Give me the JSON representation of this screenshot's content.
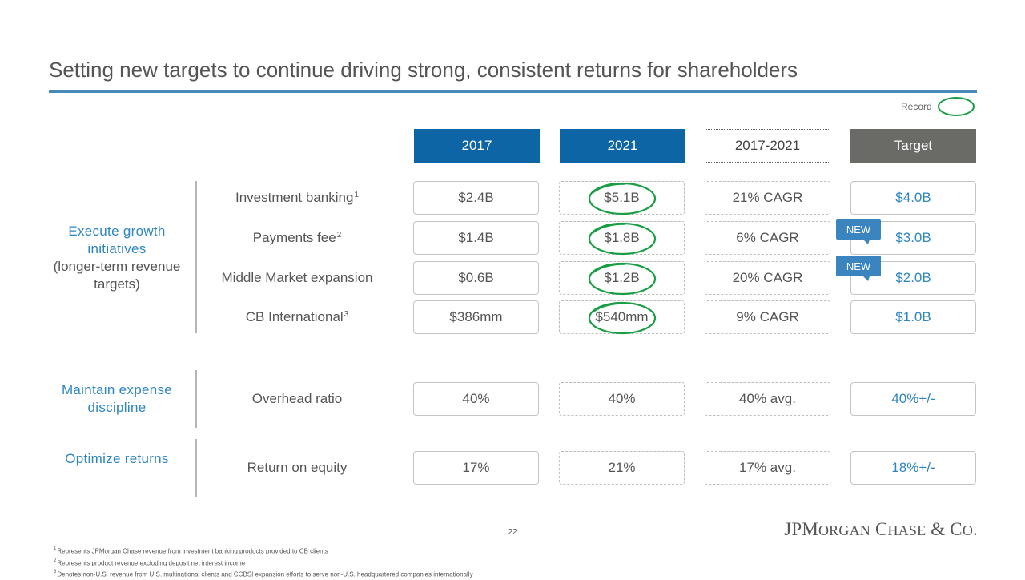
{
  "title": "Setting new targets to continue driving strong, consistent returns for shareholders",
  "legend": {
    "label": "Record",
    "marker_color": "#1a9e44"
  },
  "columns": [
    "2017",
    "2021",
    "2017-2021",
    "Target"
  ],
  "groups": [
    {
      "accent": "Execute growth initiatives",
      "sub": "(longer-term revenue targets)"
    },
    {
      "accent": "Maintain expense discipline",
      "sub": ""
    },
    {
      "accent": "Optimize returns",
      "sub": ""
    }
  ],
  "rows": [
    {
      "label": "Investment banking",
      "sup": "1",
      "v2017": "$2.4B",
      "v2021": "$5.1B",
      "change": "21% CAGR",
      "target": "$4.0B",
      "record": true,
      "new": false
    },
    {
      "label": "Payments fee",
      "sup": "2",
      "v2017": "$1.4B",
      "v2021": "$1.8B",
      "change": "6% CAGR",
      "target": "$3.0B",
      "record": true,
      "new": true
    },
    {
      "label": "Middle Market expansion",
      "sup": "",
      "v2017": "$0.6B",
      "v2021": "$1.2B",
      "change": "20% CAGR",
      "target": "$2.0B",
      "record": true,
      "new": true
    },
    {
      "label": "CB International",
      "sup": "3",
      "v2017": "$386mm",
      "v2021": "$540mm",
      "change": "9% CAGR",
      "target": "$1.0B",
      "record": true,
      "new": false
    },
    {
      "label": "Overhead ratio",
      "sup": "",
      "v2017": "40%",
      "v2021": "40%",
      "change": "40% avg.",
      "target": "40%+/-",
      "record": false,
      "new": false
    },
    {
      "label": "Return on equity",
      "sup": "",
      "v2017": "17%",
      "v2021": "21%",
      "change": "17% avg.",
      "target": "18%+/-",
      "record": false,
      "new": false
    }
  ],
  "badge_label": "NEW",
  "page_number": "22",
  "logo": {
    "a": "JPM",
    "b": "ORGAN",
    "c": " C",
    "d": "HASE",
    "e": " & C",
    "f": "O",
    "g": "."
  },
  "footnotes": [
    {
      "num": "1",
      "text": "Represents JPMorgan Chase revenue from investment banking products provided to CB clients"
    },
    {
      "num": "2",
      "text": "Represents product revenue excluding deposit net interest income"
    },
    {
      "num": "3",
      "text": "Denotes non-U.S. revenue from U.S. multinational clients and CCBSI expansion efforts to serve non-U.S. headquartered companies internationally"
    }
  ],
  "colors": {
    "accent_blue": "#2e86c1",
    "header_blue": "#0e65a6",
    "header_gray": "#6a6a67",
    "rule_blue": "#4a8ab8",
    "record_green": "#1a9e44"
  }
}
